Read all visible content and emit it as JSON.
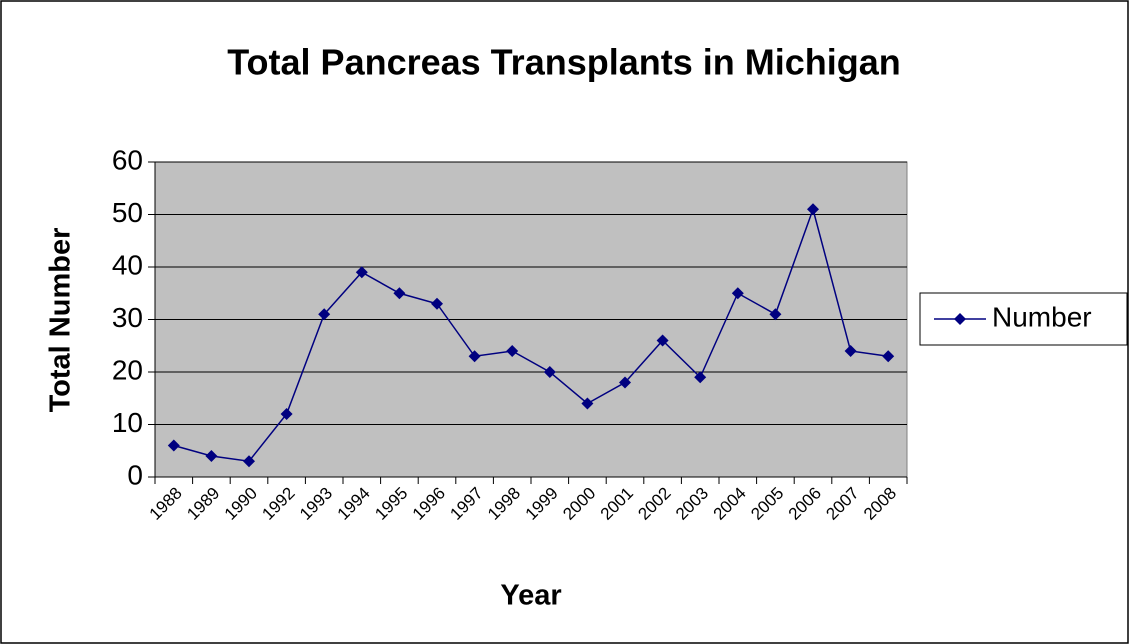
{
  "chart_data": {
    "type": "line",
    "title": "Total Pancreas Transplants in Michigan",
    "x_label": "Year",
    "y_label": "Total Number",
    "categories": [
      "1988",
      "1989",
      "1990",
      "1992",
      "1993",
      "1994",
      "1995",
      "1996",
      "1997",
      "1998",
      "1999",
      "2000",
      "2001",
      "2002",
      "2003",
      "2004",
      "2005",
      "2006",
      "2007",
      "2008"
    ],
    "series": [
      {
        "name": "Number",
        "color": "#000080",
        "values": [
          6,
          4,
          3,
          12,
          31,
          39,
          35,
          33,
          23,
          24,
          20,
          14,
          18,
          26,
          19,
          35,
          31,
          51,
          24,
          23
        ]
      }
    ],
    "ylim": [
      0,
      60
    ],
    "yticks": [
      0,
      10,
      20,
      30,
      40,
      50,
      60
    ],
    "grid": true,
    "legend": "right",
    "plot_background": "#c0c0c0"
  }
}
